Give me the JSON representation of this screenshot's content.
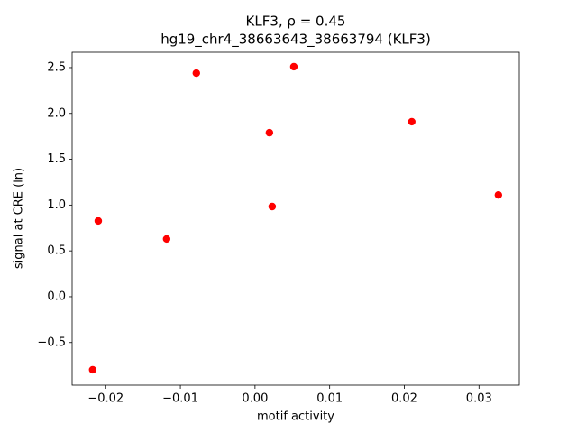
{
  "chart_data": {
    "type": "scatter",
    "title": "KLF3, ρ = 0.45",
    "subtitle": "hg19_chr4_38663643_38663794 (KLF3)",
    "x_label": "motif activity",
    "y_label": "signal at CRE (ln)",
    "series": [
      {
        "color": "#ff0000",
        "x": [
          -0.02175,
          -0.021,
          -0.01184,
          -0.00786,
          0.00193,
          0.0023,
          0.0052,
          0.021,
          0.0326
        ],
        "values": [
          -0.797,
          0.827,
          0.63,
          2.44,
          1.79,
          0.984,
          2.51,
          1.91,
          1.11
        ]
      }
    ],
    "xlim": [
      -0.0245,
      0.0354
    ],
    "ylim": [
      -0.965,
      2.667
    ],
    "xticks": [
      {
        "value": -0.02,
        "label": "−0.02"
      },
      {
        "value": -0.01,
        "label": "−0.01"
      },
      {
        "value": 0,
        "label": "0.00"
      },
      0.01,
      0.02,
      0.03
    ],
    "yticks": [
      {
        "value": -0.5,
        "label": "−0.5"
      },
      {
        "value": 0,
        "label": "0.0"
      },
      0.5,
      {
        "value": 1,
        "label": "1.0"
      },
      1.5,
      {
        "value": 2,
        "label": "2.0"
      },
      2.5
    ],
    "grid": false
  }
}
